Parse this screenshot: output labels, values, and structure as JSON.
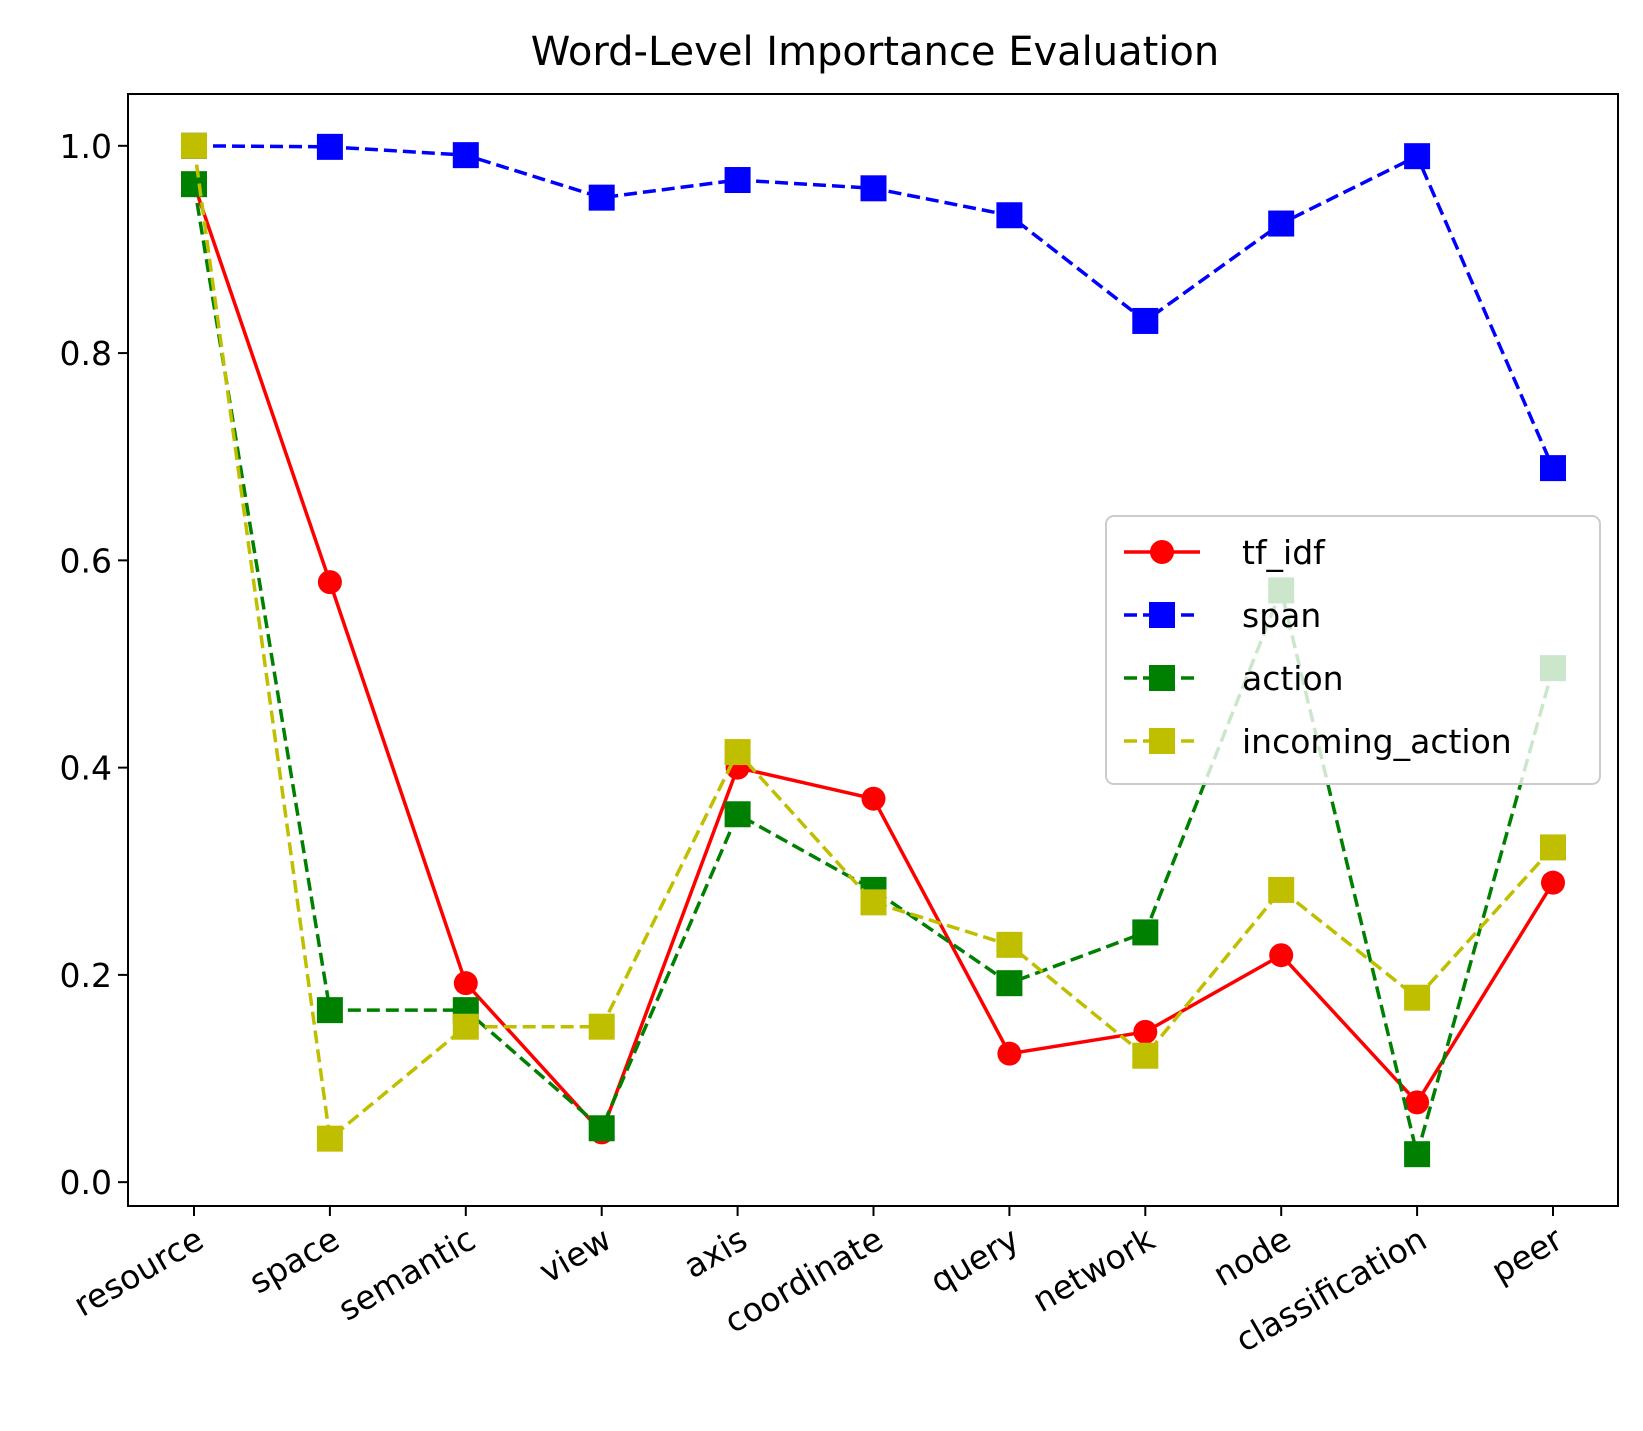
{
  "chart_data": {
    "type": "line",
    "title": "Word-Level Importance Evaluation",
    "xlabel": "",
    "ylabel": "",
    "categories": [
      "resource",
      "space",
      "semantic",
      "view",
      "axis",
      "coordinate",
      "query",
      "network",
      "node",
      "classification",
      "peer"
    ],
    "ylim": [
      -0.023,
      1.05
    ],
    "yticks": [
      "0.0",
      "0.2",
      "0.4",
      "0.6",
      "0.8",
      "1.0"
    ],
    "grid": false,
    "legend_position": "center-right",
    "series": [
      {
        "name": "tf_idf",
        "color": "#ff0000",
        "line_style": "solid",
        "marker": "circle",
        "values": [
          0.963,
          0.579,
          0.192,
          0.048,
          0.4,
          0.37,
          0.124,
          0.145,
          0.219,
          0.077,
          0.289
        ]
      },
      {
        "name": "span",
        "color": "#0000ff",
        "line_style": "dashed",
        "marker": "square",
        "values": [
          1.0,
          0.999,
          0.991,
          0.95,
          0.967,
          0.959,
          0.933,
          0.831,
          0.925,
          0.99,
          0.689
        ]
      },
      {
        "name": "action",
        "color": "#008000",
        "line_style": "dashed",
        "marker": "square",
        "values": [
          0.963,
          0.166,
          0.166,
          0.052,
          0.355,
          0.282,
          0.192,
          0.241,
          0.571,
          0.027,
          0.496
        ]
      },
      {
        "name": "incoming_action",
        "color": "#bfbf00",
        "line_style": "dashed",
        "marker": "square",
        "values": [
          1.0,
          0.042,
          0.15,
          0.15,
          0.415,
          0.27,
          0.229,
          0.122,
          0.282,
          0.178,
          0.323
        ]
      }
    ]
  }
}
